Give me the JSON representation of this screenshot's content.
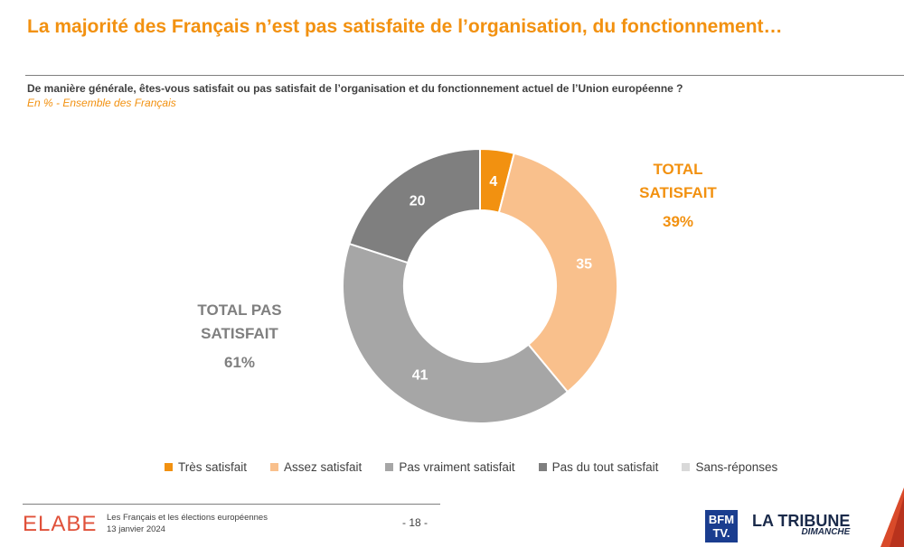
{
  "header": {
    "title": "La majorité des Français n’est pas satisfaite de l’organisation, du fonctionnement…",
    "question": "De manière générale, êtes-vous satisfait ou pas satisfait de l’organisation et du fonctionnement actuel de l’Union européenne ?",
    "subtitle": "En % - Ensemble des Français"
  },
  "chart_data": {
    "type": "pie",
    "donut": true,
    "categories": [
      "Très satisfait",
      "Assez satisfait",
      "Pas vraiment satisfait",
      "Pas du tout satisfait",
      "Sans-réponses"
    ],
    "values": [
      4,
      35,
      41,
      20,
      0
    ],
    "colors": [
      "#f29110",
      "#f9c08c",
      "#a6a6a6",
      "#7f7f7f",
      "#d9d9d9"
    ],
    "label_colors": [
      "#ffffff",
      "#ffffff",
      "#ffffff",
      "#ffffff",
      "#ffffff"
    ],
    "legend_position": "bottom",
    "annotations": {
      "total_satisfait": {
        "label": "TOTAL SATISFAIT",
        "value": "39%",
        "color": "#f29110"
      },
      "total_pas_satisfait": {
        "label": "TOTAL PAS SATISFAIT",
        "value": "61%",
        "color": "#7f7f7f"
      }
    }
  },
  "footer": {
    "brand": "ELABE",
    "line1": "Les Français et les élections européennes",
    "line2": "13 janvier 2024",
    "page": "- 18 -",
    "partner1": "BFM TV.",
    "partner2_main": "LA TRIBUNE",
    "partner2_sub": "DIMANCHE"
  }
}
